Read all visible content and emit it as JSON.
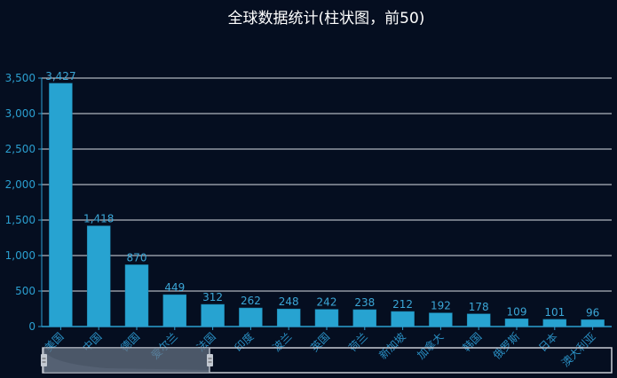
{
  "title": "全球数据统计(柱状图，前50)",
  "colors": {
    "background": "#050e20",
    "bar": "#27a3d1",
    "axis": "#2b9fd0",
    "grid": "#d9dde4",
    "title": "#ffffff"
  },
  "chart_data": {
    "type": "bar",
    "title": "全球数据统计(柱状图，前50)",
    "xlabel": "",
    "ylabel": "",
    "categories": [
      "美国",
      "中国",
      "德国",
      "爱尔兰",
      "法国",
      "印度",
      "波兰",
      "英国",
      "荷兰",
      "新加坡",
      "加拿大",
      "韩国",
      "俄罗斯",
      "日本",
      "澳大利亚"
    ],
    "values": [
      3427,
      1418,
      870,
      449,
      312,
      262,
      248,
      242,
      238,
      212,
      192,
      178,
      109,
      101,
      96
    ],
    "ylim": [
      0,
      3500
    ],
    "yticks": [
      "0",
      "500",
      "1,000",
      "1,500",
      "2,000",
      "2,500",
      "3,000",
      "3,500"
    ],
    "value_labels": [
      "3,427",
      "1,418",
      "870",
      "449",
      "312",
      "262",
      "248",
      "242",
      "238",
      "212",
      "192",
      "178",
      "109",
      "101",
      "96"
    ],
    "grid": true,
    "legend": "none"
  },
  "datazoom": {
    "start_percent": 0,
    "end_percent": 30
  }
}
